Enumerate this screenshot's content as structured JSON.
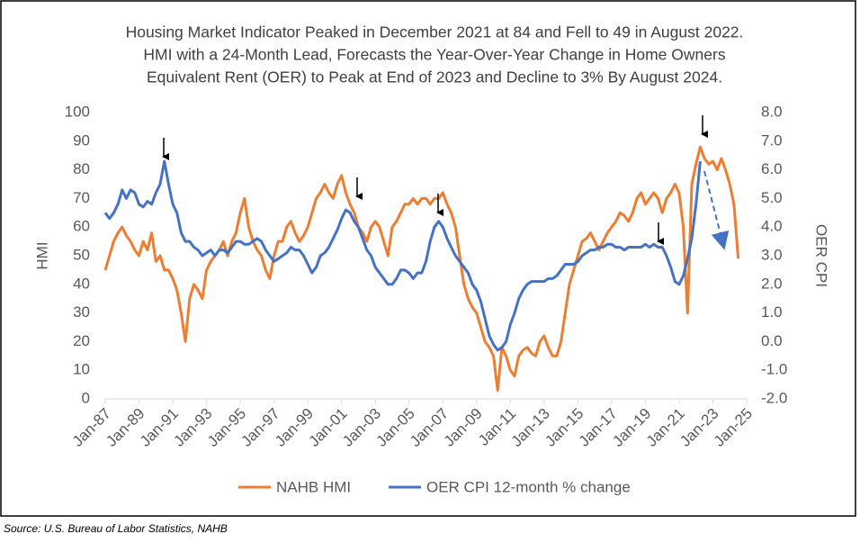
{
  "chart_data": {
    "type": "line",
    "title": [
      "Housing Market Indicator Peaked in December 2021 at 84 and Fell to 49 in August 2022.",
      "HMI with a 24-Month Lead, Forecasts the Year-Over-Year Change in Home Owners",
      "Equivalent Rent (OER) to Peak at End of 2023 and Decline to 3% By August 2024."
    ],
    "ylabel": "HMI",
    "y2label": "OER CPI",
    "source": "Source: U.S. Bureau of Labor Statistics, NAHB",
    "categories": [
      "Jan-87",
      "Apr-87",
      "Jul-87",
      "Oct-87",
      "Jan-88",
      "Apr-88",
      "Jul-88",
      "Oct-88",
      "Jan-89",
      "Apr-89",
      "Jul-89",
      "Oct-89",
      "Jan-90",
      "Apr-90",
      "Jul-90",
      "Oct-90",
      "Jan-91",
      "Apr-91",
      "Jul-91",
      "Oct-91",
      "Jan-92",
      "Apr-92",
      "Jul-92",
      "Oct-92",
      "Jan-93",
      "Apr-93",
      "Jul-93",
      "Oct-93",
      "Jan-94",
      "Apr-94",
      "Jul-94",
      "Oct-94",
      "Jan-95",
      "Apr-95",
      "Jul-95",
      "Oct-95",
      "Jan-96",
      "Apr-96",
      "Jul-96",
      "Oct-96",
      "Jan-97",
      "Apr-97",
      "Jul-97",
      "Oct-97",
      "Jan-98",
      "Apr-98",
      "Jul-98",
      "Oct-98",
      "Jan-99",
      "Apr-99",
      "Jul-99",
      "Oct-99",
      "Jan-00",
      "Apr-00",
      "Jul-00",
      "Oct-00",
      "Jan-01",
      "Apr-01",
      "Jul-01",
      "Oct-01",
      "Jan-02",
      "Apr-02",
      "Jul-02",
      "Oct-02",
      "Jan-03",
      "Apr-03",
      "Jul-03",
      "Oct-03",
      "Jan-04",
      "Apr-04",
      "Jul-04",
      "Oct-04",
      "Jan-05",
      "Apr-05",
      "Jul-05",
      "Oct-05",
      "Jan-06",
      "Apr-06",
      "Jul-06",
      "Oct-06",
      "Jan-07",
      "Apr-07",
      "Jul-07",
      "Oct-07",
      "Jan-08",
      "Apr-08",
      "Jul-08",
      "Oct-08",
      "Jan-09",
      "Apr-09",
      "Jul-09",
      "Oct-09",
      "Jan-10",
      "Apr-10",
      "Jul-10",
      "Oct-10",
      "Jan-11",
      "Apr-11",
      "Jul-11",
      "Oct-11",
      "Jan-12",
      "Apr-12",
      "Jul-12",
      "Oct-12",
      "Jan-13",
      "Apr-13",
      "Jul-13",
      "Oct-13",
      "Jan-14",
      "Apr-14",
      "Jul-14",
      "Oct-14",
      "Jan-15",
      "Apr-15",
      "Jul-15",
      "Oct-15",
      "Jan-16",
      "Apr-16",
      "Jul-16",
      "Oct-16",
      "Jan-17",
      "Apr-17",
      "Jul-17",
      "Oct-17",
      "Jan-18",
      "Apr-18",
      "Jul-18",
      "Oct-18",
      "Jan-19",
      "Apr-19",
      "Jul-19",
      "Oct-19",
      "Jan-20",
      "Apr-20",
      "Jul-20",
      "Oct-20",
      "Jan-21",
      "Apr-21",
      "Jul-21",
      "Oct-21",
      "Jan-22",
      "Apr-22",
      "Jul-22",
      "Oct-22",
      "Jan-23",
      "Apr-23",
      "Jul-23",
      "Oct-23",
      "Jan-24",
      "Apr-24",
      "Jul-24",
      "Oct-24",
      "Jan-25"
    ],
    "xticks": [
      "Jan-87",
      "Jan-89",
      "Jan-91",
      "Jan-93",
      "Jan-95",
      "Jan-97",
      "Jan-99",
      "Jan-01",
      "Jan-03",
      "Jan-05",
      "Jan-07",
      "Jan-09",
      "Jan-11",
      "Jan-13",
      "Jan-15",
      "Jan-17",
      "Jan-19",
      "Jan-21",
      "Jan-23",
      "Jan-25"
    ],
    "series": [
      {
        "name": "NAHB HMI",
        "color": "#ED7D31",
        "values": [
          45,
          50,
          55,
          58,
          60,
          57,
          55,
          52,
          50,
          55,
          52,
          58,
          48,
          50,
          45,
          45,
          42,
          38,
          30,
          20,
          35,
          40,
          38,
          35,
          45,
          48,
          50,
          52,
          55,
          50,
          55,
          58,
          65,
          70,
          60,
          55,
          52,
          50,
          45,
          42,
          50,
          55,
          55,
          60,
          62,
          58,
          55,
          57,
          60,
          65,
          70,
          72,
          75,
          72,
          70,
          75,
          78,
          72,
          68,
          65,
          60,
          58,
          55,
          60,
          62,
          60,
          55,
          50,
          60,
          62,
          65,
          68,
          68,
          70,
          68,
          70,
          70,
          68,
          70,
          70,
          72,
          68,
          65,
          60,
          50,
          40,
          35,
          32,
          30,
          25,
          20,
          18,
          15,
          3,
          18,
          15,
          10,
          8,
          15,
          17,
          18,
          16,
          15,
          20,
          22,
          18,
          15,
          15,
          20,
          30,
          40,
          45,
          50,
          55,
          56,
          58,
          55,
          52,
          55,
          58,
          60,
          62,
          65,
          64,
          62,
          65,
          70,
          72,
          68,
          70,
          72,
          70,
          65,
          70,
          72,
          75,
          72,
          60,
          30,
          75,
          82,
          88,
          84,
          82,
          83,
          80,
          84,
          80,
          75,
          68,
          49,
          null,
          null
        ]
      },
      {
        "name": "OER CPI 12-month % change",
        "color": "#4472C4",
        "axis": "y2",
        "values": [
          4.5,
          4.3,
          4.5,
          4.8,
          5.3,
          5.0,
          5.3,
          5.2,
          4.8,
          4.7,
          4.9,
          4.8,
          5.2,
          5.5,
          6.3,
          5.5,
          4.8,
          4.5,
          3.8,
          3.5,
          3.5,
          3.3,
          3.2,
          3.0,
          3.1,
          3.2,
          3.0,
          3.2,
          3.2,
          3.1,
          3.3,
          3.5,
          3.5,
          3.4,
          3.4,
          3.5,
          3.6,
          3.5,
          3.2,
          3.0,
          2.8,
          2.9,
          3.0,
          3.1,
          3.3,
          3.2,
          3.2,
          3.0,
          2.7,
          2.4,
          2.6,
          3.0,
          3.1,
          3.3,
          3.6,
          3.9,
          4.3,
          4.6,
          4.5,
          4.2,
          4.0,
          3.6,
          3.2,
          3.0,
          2.6,
          2.4,
          2.2,
          2.0,
          2.0,
          2.2,
          2.5,
          2.5,
          2.4,
          2.2,
          2.4,
          2.4,
          2.8,
          3.5,
          4.0,
          4.2,
          4.0,
          3.6,
          3.3,
          3.0,
          2.8,
          2.6,
          2.4,
          2.0,
          1.8,
          1.4,
          0.8,
          0.2,
          -0.1,
          -0.3,
          -0.2,
          0.0,
          0.6,
          1.0,
          1.5,
          1.8,
          2.0,
          2.1,
          2.1,
          2.1,
          2.1,
          2.2,
          2.2,
          2.3,
          2.5,
          2.7,
          2.7,
          2.7,
          2.8,
          3.0,
          3.1,
          3.2,
          3.2,
          3.3,
          3.3,
          3.4,
          3.4,
          3.3,
          3.3,
          3.2,
          3.3,
          3.3,
          3.3,
          3.3,
          3.4,
          3.3,
          3.4,
          3.3,
          3.3,
          3.0,
          2.6,
          2.1,
          2.0,
          2.3,
          2.9,
          3.6,
          4.8,
          6.3,
          null,
          null,
          null,
          null,
          null,
          null,
          null,
          null,
          null,
          null,
          null
        ]
      }
    ],
    "ylim": [
      0,
      100
    ],
    "yticks": [
      0,
      10,
      20,
      30,
      40,
      50,
      60,
      70,
      80,
      90,
      100
    ],
    "y2lim": [
      -2,
      8
    ],
    "y2ticks": [
      {
        "value": -2,
        "label": "-2.0"
      },
      {
        "value": -1,
        "label": "-1.0"
      },
      {
        "value": 0,
        "label": "0.0"
      },
      {
        "value": 1,
        "label": "1.0"
      },
      {
        "value": 2,
        "label": "2.0"
      },
      {
        "value": 3,
        "label": "3.0"
      },
      {
        "value": 4,
        "label": "4.0"
      },
      {
        "value": 5,
        "label": "5.0"
      },
      {
        "value": 6,
        "label": "6.0"
      },
      {
        "value": 7,
        "label": "7.0"
      },
      {
        "value": 8,
        "label": "8.0"
      }
    ],
    "legend": "bottom"
  }
}
